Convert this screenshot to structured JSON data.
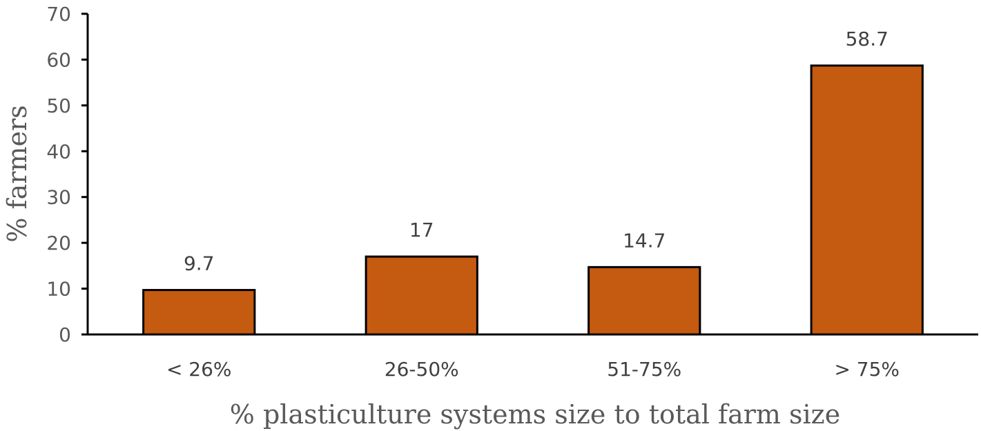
{
  "chart_data": {
    "type": "bar",
    "title": "",
    "xlabel": "% plasticulture systems size to total farm size",
    "ylabel": "% farmers",
    "categories": [
      "< 26%",
      "26-50%",
      "51-75%",
      "> 75%"
    ],
    "values": [
      9.7,
      17,
      14.7,
      58.7
    ],
    "data_labels": [
      "9.7",
      "17",
      "14.7",
      "58.7"
    ],
    "ylim": [
      0,
      70
    ],
    "yticks": [
      0,
      10,
      20,
      30,
      40,
      50,
      60,
      70
    ],
    "ytick_labels": [
      "0",
      "10",
      "20",
      "30",
      "40",
      "50",
      "60",
      "70"
    ],
    "grid": false,
    "legend": "none",
    "bar_color": "#C55A11",
    "bar_edge_color": "#000000"
  }
}
